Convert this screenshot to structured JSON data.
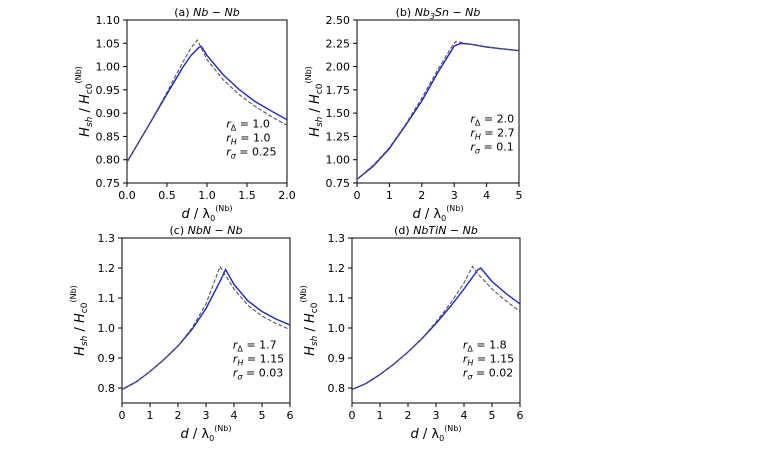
{
  "chart_data": [
    {
      "type": "line",
      "panel_label": "(a)",
      "title": "Nb − Nb",
      "xlabel": "d / λ0(Nb)",
      "ylabel": "Hsh / Hc0(Nb)",
      "xlim": [
        0.0,
        2.0
      ],
      "ylim": [
        0.75,
        1.1
      ],
      "xticks": [
        "0.0",
        "0.5",
        "1.0",
        "1.5",
        "2.0"
      ],
      "yticks": [
        "0.75",
        "0.80",
        "0.85",
        "0.90",
        "0.95",
        "1.00",
        "1.05",
        "1.10"
      ],
      "annotations": [
        "r_Δ = 1.0",
        "r_H = 1.0",
        "r_σ = 0.25"
      ],
      "series": [
        {
          "color": "#1f1fe0",
          "style": "solid",
          "x": [
            0.0,
            0.1,
            0.2,
            0.3,
            0.4,
            0.5,
            0.6,
            0.7,
            0.8,
            0.9,
            0.93,
            1.0,
            1.2,
            1.4,
            1.6,
            1.8,
            2.0
          ],
          "y": [
            0.795,
            0.824,
            0.853,
            0.882,
            0.912,
            0.941,
            0.97,
            0.999,
            1.024,
            1.041,
            1.043,
            1.024,
            0.983,
            0.951,
            0.925,
            0.905,
            0.886
          ]
        },
        {
          "color": "#555555",
          "style": "dashed",
          "x": [
            0.0,
            0.1,
            0.2,
            0.3,
            0.4,
            0.5,
            0.6,
            0.7,
            0.8,
            0.88,
            1.0,
            1.2,
            1.4,
            1.6,
            1.8,
            2.0
          ],
          "y": [
            0.795,
            0.824,
            0.853,
            0.883,
            0.914,
            0.945,
            0.978,
            1.01,
            1.04,
            1.057,
            1.015,
            0.972,
            0.94,
            0.915,
            0.893,
            0.874
          ]
        }
      ]
    },
    {
      "type": "line",
      "panel_label": "(b)",
      "title": "Nb3Sn − Nb",
      "xlabel": "d / λ0(Nb)",
      "ylabel": "Hsh / Hc0(Nb)",
      "xlim": [
        0,
        5
      ],
      "ylim": [
        0.75,
        2.5
      ],
      "xticks": [
        "0",
        "1",
        "2",
        "3",
        "4",
        "5"
      ],
      "yticks": [
        "0.75",
        "1.00",
        "1.25",
        "1.50",
        "1.75",
        "2.00",
        "2.25",
        "2.50"
      ],
      "annotations": [
        "r_Δ = 2.0",
        "r_H = 2.7",
        "r_σ = 0.1"
      ],
      "series": [
        {
          "color": "#1f1fe0",
          "style": "solid",
          "x": [
            0.0,
            0.5,
            1.0,
            1.5,
            2.0,
            2.5,
            3.0,
            3.2,
            3.5,
            4.0,
            4.5,
            5.0
          ],
          "y": [
            0.79,
            0.93,
            1.12,
            1.37,
            1.63,
            1.94,
            2.22,
            2.25,
            2.24,
            2.21,
            2.19,
            2.17
          ]
        },
        {
          "color": "#555555",
          "style": "dashed",
          "x": [
            0.0,
            0.5,
            1.0,
            1.5,
            2.0,
            2.5,
            2.9,
            3.05,
            3.5,
            4.0,
            4.5,
            5.0
          ],
          "y": [
            0.79,
            0.94,
            1.13,
            1.38,
            1.66,
            1.97,
            2.2,
            2.27,
            2.24,
            2.21,
            2.19,
            2.17
          ]
        }
      ]
    },
    {
      "type": "line",
      "panel_label": "(c)",
      "title": "NbN − Nb",
      "xlabel": "d / λ0(Nb)",
      "ylabel": "Hsh / Hc0(Nb)",
      "xlim": [
        0,
        6
      ],
      "ylim": [
        0.75,
        1.3
      ],
      "xticks": [
        "0",
        "1",
        "2",
        "3",
        "4",
        "5",
        "6"
      ],
      "yticks": [
        "0.8",
        "0.9",
        "1.0",
        "1.1",
        "1.2",
        "1.3"
      ],
      "annotations": [
        "r_Δ = 1.7",
        "r_H = 1.15",
        "r_σ = 0.03"
      ],
      "series": [
        {
          "color": "#1f1fe0",
          "style": "solid",
          "x": [
            0,
            0.5,
            1,
            1.5,
            2,
            2.5,
            3,
            3.5,
            3.7,
            4,
            4.5,
            5,
            5.5,
            6
          ],
          "y": [
            0.795,
            0.82,
            0.855,
            0.895,
            0.94,
            0.995,
            1.065,
            1.155,
            1.195,
            1.145,
            1.09,
            1.055,
            1.03,
            1.01
          ]
        },
        {
          "color": "#555555",
          "style": "dashed",
          "x": [
            0,
            0.5,
            1,
            1.5,
            2,
            2.5,
            3,
            3.4,
            3.5,
            4,
            4.5,
            5,
            5.5,
            6
          ],
          "y": [
            0.795,
            0.82,
            0.855,
            0.895,
            0.94,
            1.0,
            1.08,
            1.18,
            1.205,
            1.13,
            1.075,
            1.04,
            1.015,
            0.995
          ]
        }
      ]
    },
    {
      "type": "line",
      "panel_label": "(d)",
      "title": "NbTiN − Nb",
      "xlabel": "d / λ0(Nb)",
      "ylabel": "Hsh / Hc0(Nb)",
      "xlim": [
        0,
        6
      ],
      "ylim": [
        0.75,
        1.3
      ],
      "xticks": [
        "0",
        "1",
        "2",
        "3",
        "4",
        "5",
        "6"
      ],
      "yticks": [
        "0.8",
        "0.9",
        "1.0",
        "1.1",
        "1.2",
        "1.3"
      ],
      "annotations": [
        "r_Δ = 1.8",
        "r_H = 1.15",
        "r_σ = 0.02"
      ],
      "series": [
        {
          "color": "#1f1fe0",
          "style": "solid",
          "x": [
            0,
            0.5,
            1,
            1.5,
            2,
            2.5,
            3,
            3.5,
            4,
            4.5,
            4.6,
            5,
            5.5,
            6
          ],
          "y": [
            0.795,
            0.815,
            0.845,
            0.88,
            0.92,
            0.965,
            1.015,
            1.07,
            1.13,
            1.195,
            1.2,
            1.155,
            1.115,
            1.08
          ]
        },
        {
          "color": "#555555",
          "style": "dashed",
          "x": [
            0,
            0.5,
            1,
            1.5,
            2,
            2.5,
            3,
            3.5,
            4,
            4.3,
            4.5,
            5,
            5.5,
            6
          ],
          "y": [
            0.795,
            0.815,
            0.845,
            0.88,
            0.92,
            0.965,
            1.02,
            1.08,
            1.15,
            1.205,
            1.18,
            1.13,
            1.09,
            1.055
          ]
        }
      ]
    }
  ]
}
